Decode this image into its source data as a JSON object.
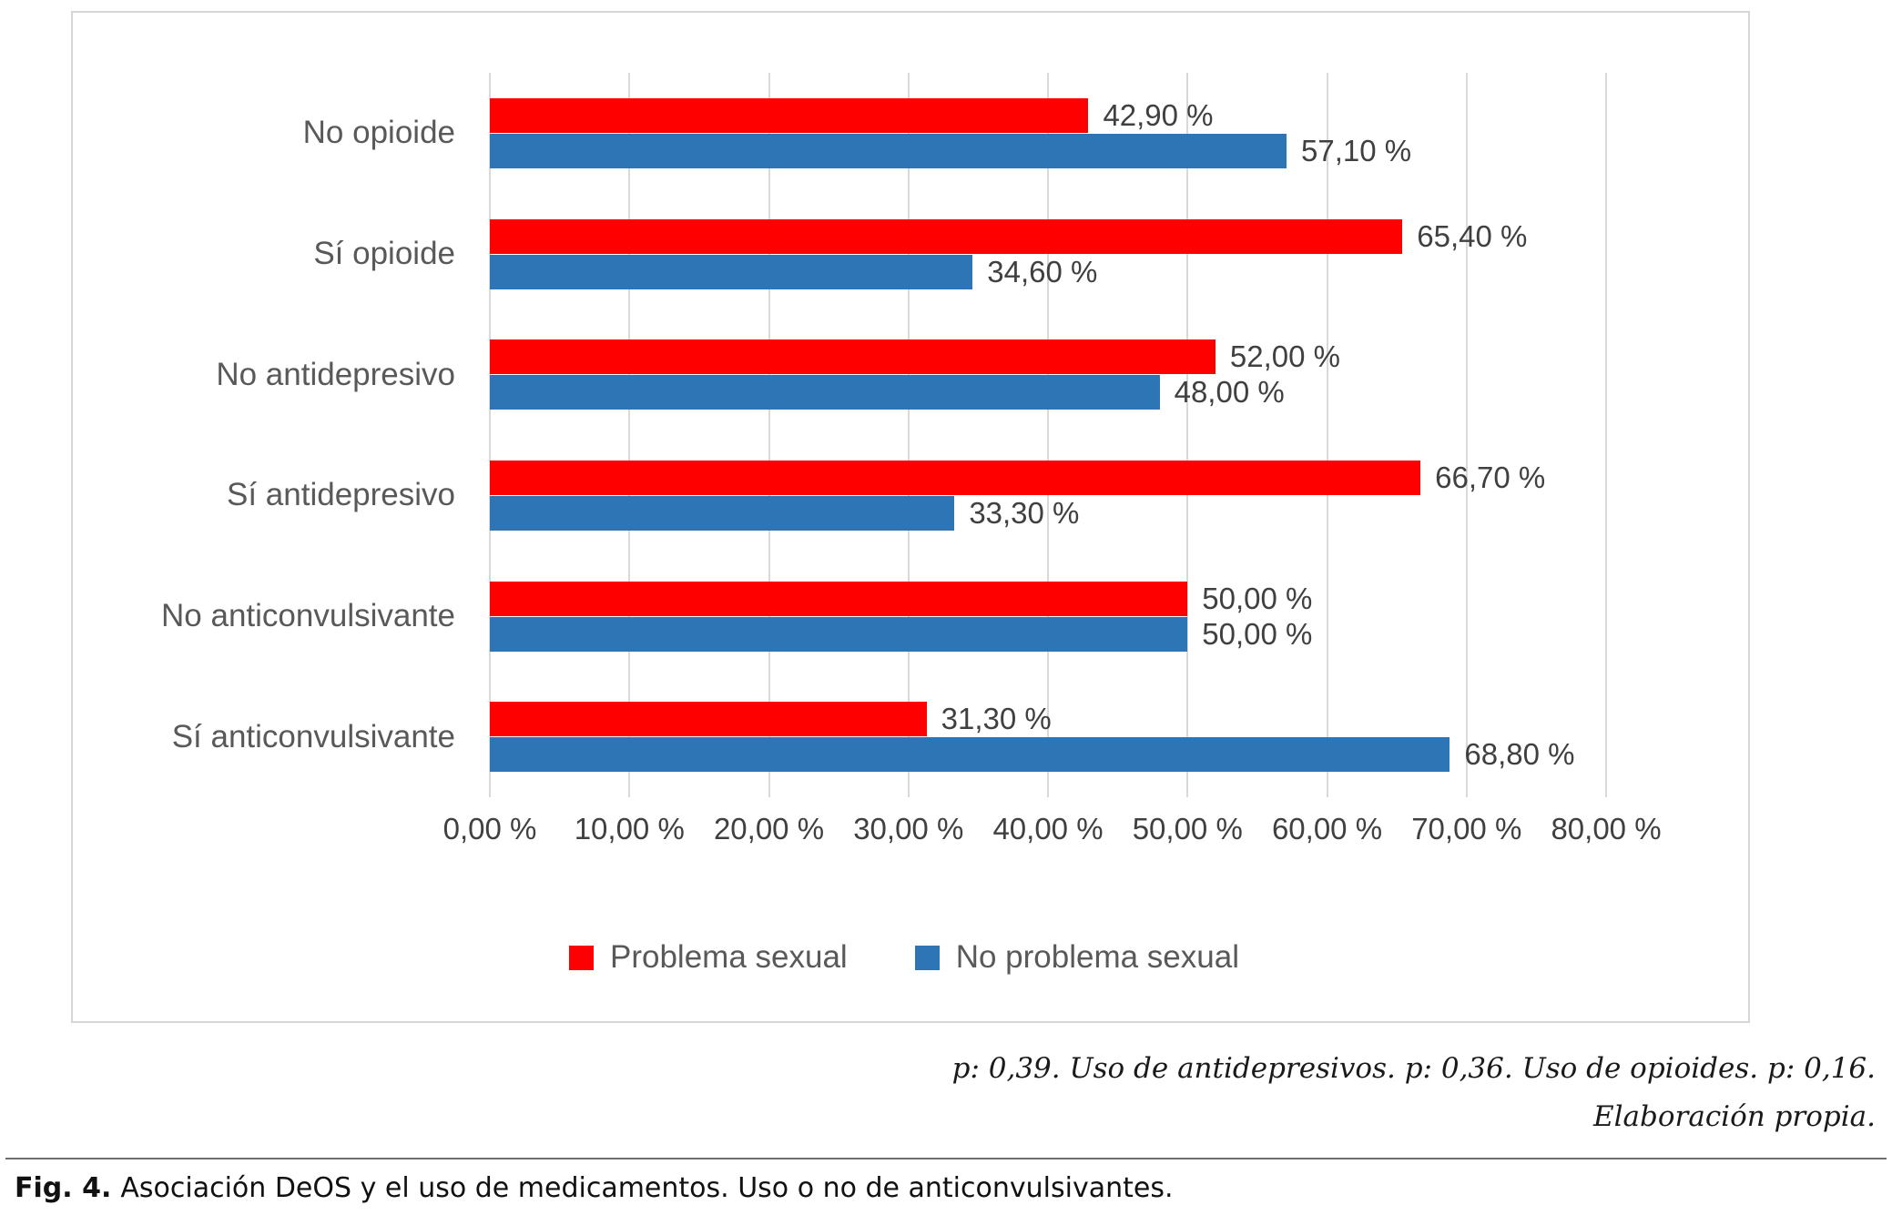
{
  "chart_data": {
    "type": "bar",
    "orientation": "horizontal",
    "title": "",
    "xlabel": "",
    "ylabel": "",
    "xlim": [
      0,
      80
    ],
    "x_ticks": [
      "0,00 %",
      "10,00 %",
      "20,00 %",
      "30,00 %",
      "40,00 %",
      "50,00 %",
      "60,00 %",
      "70,00 %",
      "80,00 %"
    ],
    "grid": true,
    "legend_position": "bottom",
    "categories": [
      "No opioide",
      "Sí opioide",
      "No antidepresivo",
      "Sí antidepresivo",
      "No anticonvulsivante",
      "Sí anticonvulsivante"
    ],
    "series": [
      {
        "name": "Problema sexual",
        "key": "problema-sexual",
        "color": "#FF0000",
        "values": [
          42.9,
          65.4,
          52.0,
          66.7,
          50.0,
          31.3
        ],
        "labels": [
          "42,90 %",
          "65,40 %",
          "52,00 %",
          "66,70 %",
          "50,00 %",
          "31,30 %"
        ]
      },
      {
        "name": "No problema sexual",
        "key": "no-problema-sexual",
        "color": "#2E75B6",
        "values": [
          57.1,
          34.6,
          48.0,
          33.3,
          50.0,
          68.8
        ],
        "labels": [
          "57,10 %",
          "34,60 %",
          "48,00 %",
          "33,30 %",
          "50,00 %",
          "68,80 %"
        ]
      }
    ]
  },
  "footnote": {
    "line1": "p: 0,39. Uso de antidepresivos. p: 0,36. Uso de opioides. p: 0,16.",
    "line2": "Elaboración propia."
  },
  "caption": {
    "prefix": "Fig. 4.",
    "text": "Asociación DeOS y el uso de medicamentos. Uso o no de anticonvulsivantes."
  }
}
